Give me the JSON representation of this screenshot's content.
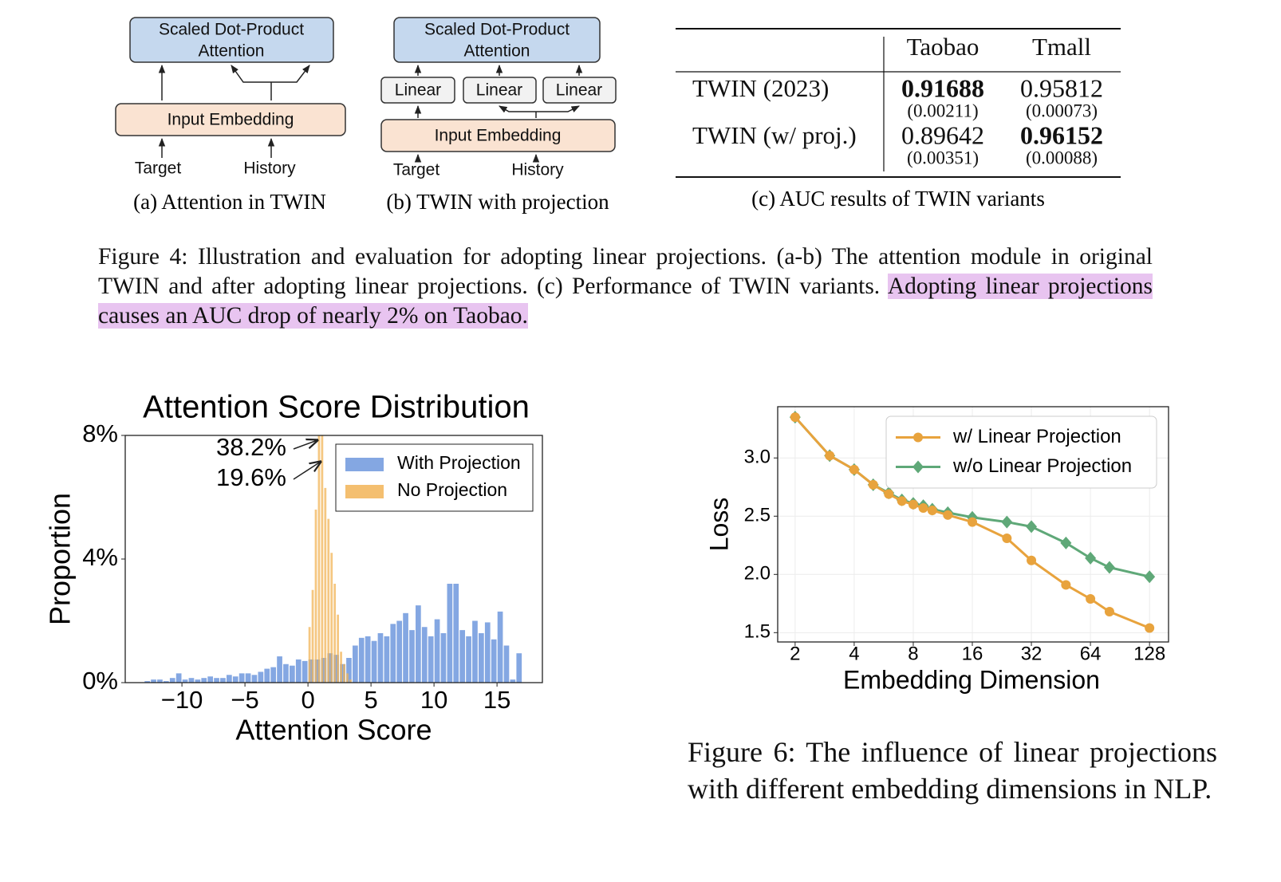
{
  "figure4": {
    "a": {
      "attention": [
        "Scaled Dot-Product",
        "Attention"
      ],
      "embedding": "Input Embedding",
      "target": "Target",
      "history": "History",
      "caption": "(a) Attention in TWIN"
    },
    "b": {
      "attention": [
        "Scaled Dot-Product",
        "Attention"
      ],
      "linear": [
        "Linear",
        "Linear",
        "Linear"
      ],
      "embedding": "Input Embedding",
      "target": "Target",
      "history": "History",
      "caption": "(b) TWIN with projection"
    },
    "c": {
      "headers": [
        "Taobao",
        "Tmall"
      ],
      "rows": [
        {
          "label": "TWIN (2023)",
          "cells": [
            {
              "value": "0.91688",
              "std": "(0.00211)",
              "bold": true
            },
            {
              "value": "0.95812",
              "std": "(0.00073)",
              "bold": false
            }
          ]
        },
        {
          "label": "TWIN (w/ proj.)",
          "cells": [
            {
              "value": "0.89642",
              "std": "(0.00351)",
              "bold": false
            },
            {
              "value": "0.96152",
              "std": "(0.00088)",
              "bold": true
            }
          ]
        }
      ],
      "caption": "(c) AUC results of TWIN variants"
    },
    "caption": {
      "text": "Figure 4: Illustration and evaluation for adopting linear projections. (a-b) The attention module in original TWIN and after adopting linear projections. (c) Performance of TWIN variants. ",
      "highlight": "Adopting linear projections causes an AUC drop of nearly 2% on Taobao."
    }
  },
  "chart_data": [
    {
      "type": "histogram",
      "title": "Attention Score Distribution",
      "x_label": "Attention Score",
      "y_label": "Proportion",
      "xlim": [
        -14.5,
        18.6
      ],
      "ylim": [
        0,
        8
      ],
      "xticks": [
        {
          "value": -10,
          "label": "−10"
        },
        {
          "value": -5,
          "label": "−5"
        },
        0,
        5,
        10,
        15
      ],
      "yticks": [
        {
          "value": 0,
          "label": "0%"
        },
        {
          "value": 4,
          "label": "4%"
        },
        {
          "value": 8,
          "label": "8%"
        }
      ],
      "legend": "upper right",
      "series": [
        {
          "name": "With Projection",
          "color": "#6f98dd",
          "bins": [
            -13,
            -12.5,
            -12,
            -11.5,
            -11,
            -10.5,
            -10,
            -9.5,
            -9,
            -8.5,
            -8,
            -7.5,
            -7,
            -6.5,
            -6,
            -5.5,
            -5,
            -4.5,
            -4,
            -3.5,
            -3,
            -2.5,
            -2,
            -1.5,
            -1,
            -0.5,
            0,
            0.5,
            1,
            1.5,
            2,
            2.5,
            3,
            3.5,
            4,
            4.5,
            5,
            5.5,
            6,
            6.5,
            7,
            7.5,
            8,
            8.5,
            9,
            9.5,
            10,
            10.5,
            11,
            11.5,
            12,
            12.5,
            13,
            13.5,
            14,
            14.5,
            15,
            15.5,
            16,
            16.5,
            17
          ],
          "values": [
            0.05,
            0.1,
            0.1,
            0.05,
            0.15,
            0.3,
            0.1,
            0.15,
            0.1,
            0.15,
            0.2,
            0.15,
            0.15,
            0.25,
            0.2,
            0.3,
            0.3,
            0.25,
            0.35,
            0.45,
            0.5,
            0.85,
            0.6,
            0.55,
            0.75,
            0.7,
            0.75,
            0.75,
            0.8,
            0.95,
            0.9,
            0.6,
            0.8,
            1.2,
            1.45,
            1.5,
            1.35,
            1.6,
            1.5,
            1.9,
            2.0,
            2.25,
            1.7,
            2.5,
            1.8,
            1.5,
            2.05,
            1.6,
            3.2,
            3.2,
            1.7,
            1.5,
            2.0,
            1.6,
            1.95,
            1.4,
            2.3,
            1.2,
            0.1,
            0.95
          ]
        },
        {
          "name": "No Projection",
          "color": "#f2b457",
          "bins": [
            0,
            0.25,
            0.5,
            0.75,
            1,
            1.25,
            1.5,
            1.75,
            2,
            2.25,
            2.5,
            2.75,
            3,
            3.25,
            3.5
          ],
          "values": [
            1.8,
            3.0,
            5.6,
            38.2,
            19.6,
            6.3,
            5.3,
            4.2,
            3.2,
            2.2,
            1.0,
            0.6,
            0.3,
            0.1
          ],
          "value_labels": [
            null,
            null,
            null,
            "38.2%",
            "19.6%",
            null,
            null,
            null,
            null,
            null,
            null,
            null,
            null,
            null
          ]
        }
      ]
    },
    {
      "type": "line",
      "x_label": "Embedding Dimension",
      "y_label": "Loss",
      "log_x": 2,
      "grid": true,
      "legend": "upper right",
      "xlim": [
        1.63,
        160
      ],
      "ylim": [
        1.42,
        3.44
      ],
      "xticks": [
        2,
        4,
        8,
        16,
        32,
        64,
        128
      ],
      "yticks": [
        1.5,
        {
          "value": 2,
          "label": "2.0"
        },
        2.5,
        {
          "value": 3,
          "label": "3.0"
        }
      ],
      "x": [
        2,
        3,
        4,
        5,
        6,
        7,
        8,
        9,
        10,
        12,
        16,
        24,
        32,
        48,
        64,
        80,
        128
      ],
      "series": [
        {
          "name": "w/ Linear Projection",
          "color": "#e8a33d",
          "marker": "circle",
          "values": [
            3.35,
            3.02,
            2.9,
            2.77,
            2.69,
            2.63,
            2.6,
            2.57,
            2.55,
            2.51,
            2.45,
            2.31,
            2.12,
            1.91,
            1.79,
            1.68,
            1.54
          ]
        },
        {
          "name": "w/o Linear Projection",
          "color": "#5fa878",
          "marker": "diamond",
          "values": [
            3.35,
            3.02,
            2.9,
            2.77,
            2.7,
            2.64,
            2.61,
            2.59,
            2.56,
            2.53,
            2.49,
            2.45,
            2.41,
            2.27,
            2.14,
            2.06,
            1.98
          ]
        }
      ]
    }
  ],
  "figure6": {
    "caption": "Figure 6: The influence of linear projections with different embedding dimensions in NLP."
  }
}
